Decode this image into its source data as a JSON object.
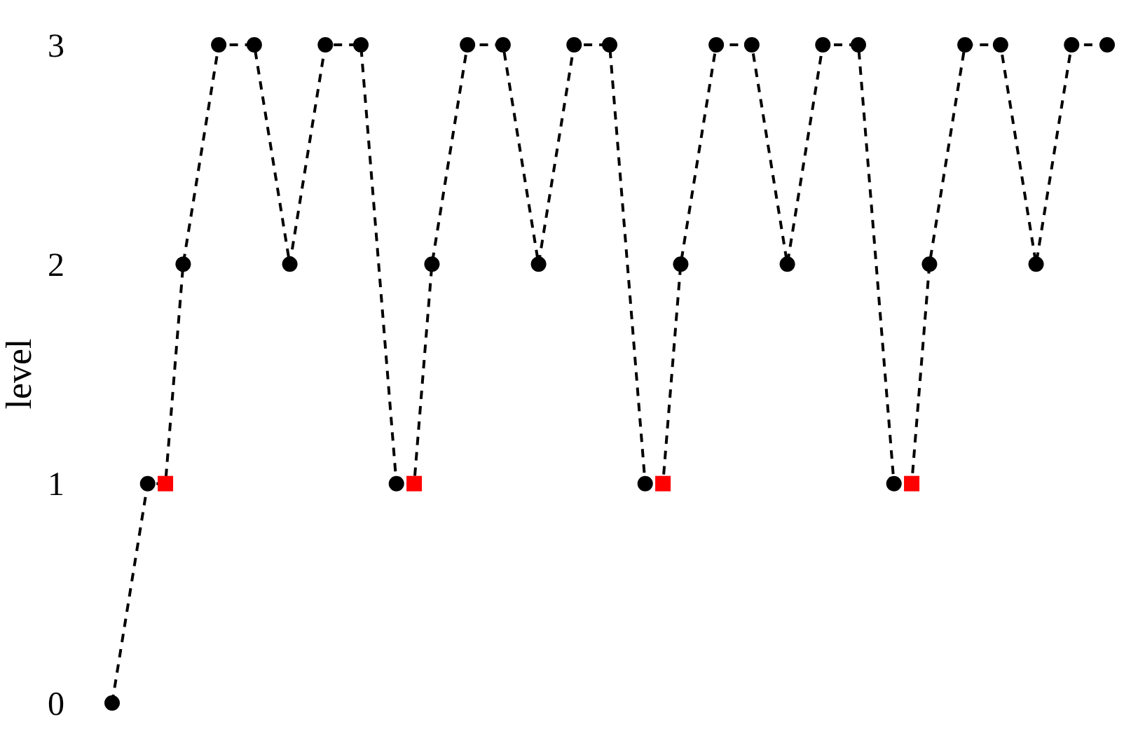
{
  "chart_data": {
    "type": "line",
    "ylabel": "level",
    "categories": [
      null,
      null,
      null,
      null,
      null,
      null,
      null,
      null,
      null,
      null,
      null,
      null,
      null,
      null,
      null,
      null,
      null,
      null,
      null,
      null,
      null,
      null,
      null,
      null,
      null,
      null,
      null,
      null,
      null,
      null,
      null,
      null,
      null,
      null,
      null,
      null,
      null,
      null,
      null,
      null,
      null,
      null,
      null,
      null,
      null,
      null,
      null,
      null,
      null,
      null,
      null,
      null,
      null,
      null,
      null,
      null,
      null
    ],
    "ylim": [
      0,
      3
    ],
    "yticks": [
      0,
      1,
      2,
      3
    ],
    "series": [
      {
        "color": "#000000",
        "line_style": "dashed",
        "values": [
          0,
          null,
          1,
          1,
          2,
          null,
          3,
          null,
          3,
          null,
          2,
          null,
          3,
          null,
          3,
          null,
          1,
          1,
          2,
          null,
          3,
          null,
          3,
          null,
          2,
          null,
          3,
          null,
          3,
          null,
          1,
          1,
          2,
          null,
          3,
          null,
          3,
          null,
          2,
          null,
          3,
          null,
          3,
          null,
          1,
          1,
          2,
          null,
          3,
          null,
          3,
          null,
          2,
          null,
          3,
          null,
          3
        ]
      },
      {
        "type": "scatter",
        "color": "#000000",
        "marker": "circle",
        "values": [
          0,
          null,
          1,
          null,
          2,
          null,
          3,
          null,
          3,
          null,
          2,
          null,
          3,
          null,
          3,
          null,
          1,
          null,
          2,
          null,
          3,
          null,
          3,
          null,
          2,
          null,
          3,
          null,
          3,
          null,
          1,
          null,
          2,
          null,
          3,
          null,
          3,
          null,
          2,
          null,
          3,
          null,
          3,
          null,
          1,
          null,
          2,
          null,
          3,
          null,
          3,
          null,
          2,
          null,
          3,
          null,
          3
        ]
      },
      {
        "type": "scatter",
        "color": "#ff0000",
        "marker": "square",
        "values": [
          null,
          null,
          null,
          1,
          null,
          null,
          null,
          null,
          null,
          null,
          null,
          null,
          null,
          null,
          null,
          null,
          null,
          1,
          null,
          null,
          null,
          null,
          null,
          null,
          null,
          null,
          null,
          null,
          null,
          null,
          null,
          1,
          null,
          null,
          null,
          null,
          null,
          null,
          null,
          null,
          null,
          null,
          null,
          null,
          null,
          1,
          null,
          null,
          null,
          null,
          null,
          null,
          null,
          null,
          null,
          null,
          null
        ]
      }
    ]
  }
}
